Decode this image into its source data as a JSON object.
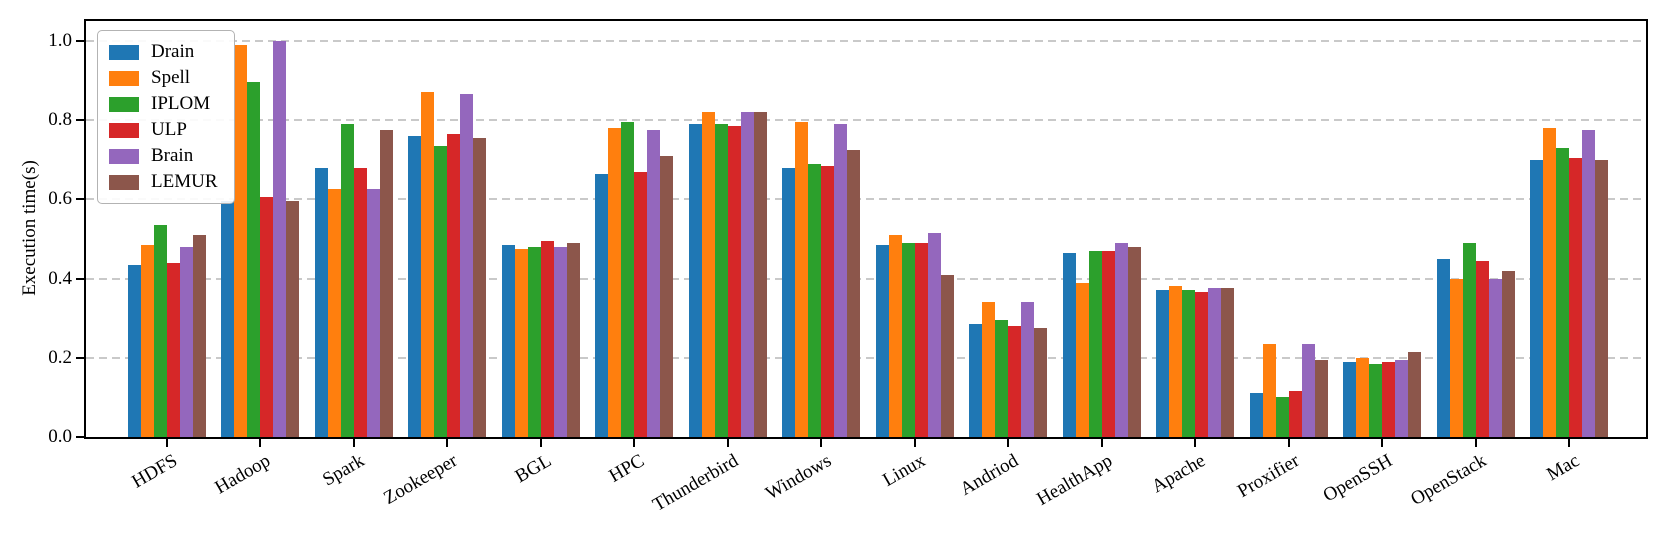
{
  "chart_data": {
    "type": "bar",
    "title": "",
    "xlabel": "",
    "ylabel": "Execution time(s)",
    "ylim": [
      0,
      1.05
    ],
    "yticks": [
      0.0,
      0.2,
      0.4,
      0.6,
      0.8,
      1.0
    ],
    "grid": "horizontal dashed",
    "legend_position": "upper left",
    "categories": [
      "HDFS",
      "Hadoop",
      "Spark",
      "Zookeeper",
      "BGL",
      "HPC",
      "Thunderbird",
      "Windows",
      "Linux",
      "Andriod",
      "HealthApp",
      "Apache",
      "Proxifier",
      "OpenSSH",
      "OpenStack",
      "Mac"
    ],
    "series": [
      {
        "name": "Drain",
        "color": "#1f77b4",
        "values": [
          0.435,
          0.595,
          0.68,
          0.76,
          0.485,
          0.665,
          0.79,
          0.68,
          0.485,
          0.285,
          0.465,
          0.37,
          0.11,
          0.19,
          0.45,
          0.7
        ]
      },
      {
        "name": "Spell",
        "color": "#ff7f0e",
        "values": [
          0.485,
          0.99,
          0.625,
          0.87,
          0.475,
          0.78,
          0.82,
          0.795,
          0.51,
          0.34,
          0.39,
          0.38,
          0.235,
          0.2,
          0.4,
          0.78
        ]
      },
      {
        "name": "IPLOM",
        "color": "#2ca02c",
        "values": [
          0.535,
          0.895,
          0.79,
          0.735,
          0.48,
          0.795,
          0.79,
          0.69,
          0.49,
          0.295,
          0.47,
          0.37,
          0.1,
          0.185,
          0.49,
          0.73
        ]
      },
      {
        "name": "ULP",
        "color": "#d62728",
        "values": [
          0.44,
          0.605,
          0.68,
          0.765,
          0.495,
          0.67,
          0.785,
          0.685,
          0.49,
          0.28,
          0.47,
          0.365,
          0.115,
          0.19,
          0.445,
          0.705
        ]
      },
      {
        "name": "Brain",
        "color": "#9467bd",
        "values": [
          0.48,
          1.0,
          0.625,
          0.865,
          0.48,
          0.775,
          0.82,
          0.79,
          0.515,
          0.34,
          0.49,
          0.375,
          0.235,
          0.195,
          0.4,
          0.775
        ]
      },
      {
        "name": "LEMUR",
        "color": "#8c564b",
        "values": [
          0.51,
          0.595,
          0.775,
          0.755,
          0.49,
          0.71,
          0.82,
          0.725,
          0.41,
          0.275,
          0.48,
          0.375,
          0.195,
          0.215,
          0.42,
          0.7
        ]
      }
    ]
  }
}
